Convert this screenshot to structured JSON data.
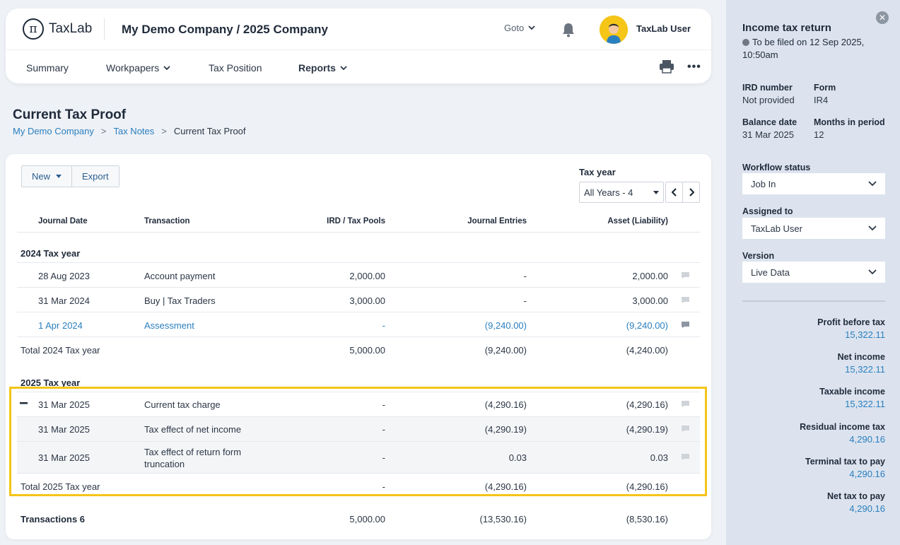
{
  "header": {
    "logo_text": "TaxLab",
    "company": "My Demo Company / 2025 Company",
    "goto": "Goto",
    "user": "TaxLab User",
    "logo_glyph": "π"
  },
  "nav": {
    "summary": "Summary",
    "workpapers": "Workpapers",
    "tax_position": "Tax Position",
    "reports": "Reports"
  },
  "page": {
    "title": "Current Tax Proof",
    "breadcrumb": [
      "My Demo Company",
      "Tax Notes",
      "Current Tax Proof"
    ],
    "bc_sep": ">"
  },
  "toolbar": {
    "new": "New",
    "export": "Export",
    "tax_year_label": "Tax year",
    "tax_year_value": "All Years - 4"
  },
  "table": {
    "headers": [
      "Journal Date",
      "Transaction",
      "IRD / Tax Pools",
      "Journal Entries",
      "Asset (Liability)"
    ],
    "group_2024": {
      "title": "2024 Tax year",
      "rows": [
        {
          "date": "28 Aug 2023",
          "transaction": "Account payment",
          "ird": "2,000.00",
          "journal": "-",
          "asset": "2,000.00"
        },
        {
          "date": "31 Mar 2024",
          "transaction": "Buy | Tax Traders",
          "ird": "3,000.00",
          "journal": "-",
          "asset": "3,000.00"
        },
        {
          "date": "1 Apr 2024",
          "transaction": "Assessment",
          "ird": "-",
          "journal": "(9,240.00)",
          "asset": "(9,240.00)"
        }
      ],
      "total": {
        "label": "Total 2024 Tax year",
        "ird": "5,000.00",
        "journal": "(9,240.00)",
        "asset": "(4,240.00)"
      }
    },
    "group_2025": {
      "title": "2025 Tax year",
      "rows": [
        {
          "date": "31 Mar 2025",
          "transaction": "Current tax charge",
          "ird": "-",
          "journal": "(4,290.16)",
          "asset": "(4,290.16)"
        },
        {
          "date": "31 Mar 2025",
          "transaction": "Tax effect of net income",
          "ird": "-",
          "journal": "(4,290.19)",
          "asset": "(4,290.19)"
        },
        {
          "date": "31 Mar 2025",
          "transaction_line1": "Tax effect of return form",
          "transaction_line2": "truncation",
          "ird": "-",
          "journal": "0.03",
          "asset": "0.03"
        }
      ],
      "total": {
        "label": "Total 2025 Tax year",
        "ird": "-",
        "journal": "(4,290.16)",
        "asset": "(4,290.16)"
      }
    },
    "grand_total": {
      "label": "Transactions 6",
      "ird": "5,000.00",
      "journal": "(13,530.16)",
      "asset": "(8,530.16)"
    }
  },
  "panel": {
    "title": "Income tax return",
    "filed": "To be filed on 12 Sep 2025, 10:50am",
    "ird_label": "IRD number",
    "ird_value": "Not provided",
    "form_label": "Form",
    "form_value": "IR4",
    "balance_label": "Balance date",
    "balance_value": "31 Mar 2025",
    "months_label": "Months in period",
    "months_value": "12",
    "workflow_label": "Workflow status",
    "workflow_value": "Job In",
    "assigned_label": "Assigned to",
    "assigned_value": "TaxLab User",
    "version_label": "Version",
    "version_value": "Live Data",
    "metrics": [
      {
        "label": "Profit before tax",
        "value": "15,322.11"
      },
      {
        "label": "Net income",
        "value": "15,322.11"
      },
      {
        "label": "Taxable income",
        "value": "15,322.11"
      },
      {
        "label": "Residual income tax",
        "value": "4,290.16"
      },
      {
        "label": "Terminal tax to pay",
        "value": "4,290.16"
      },
      {
        "label": "Net tax to pay",
        "value": "4,290.16"
      }
    ]
  },
  "colors": {
    "accent": "#2a7fbf",
    "highlight": "#f5c518",
    "panel_bg": "#dce3ee"
  }
}
